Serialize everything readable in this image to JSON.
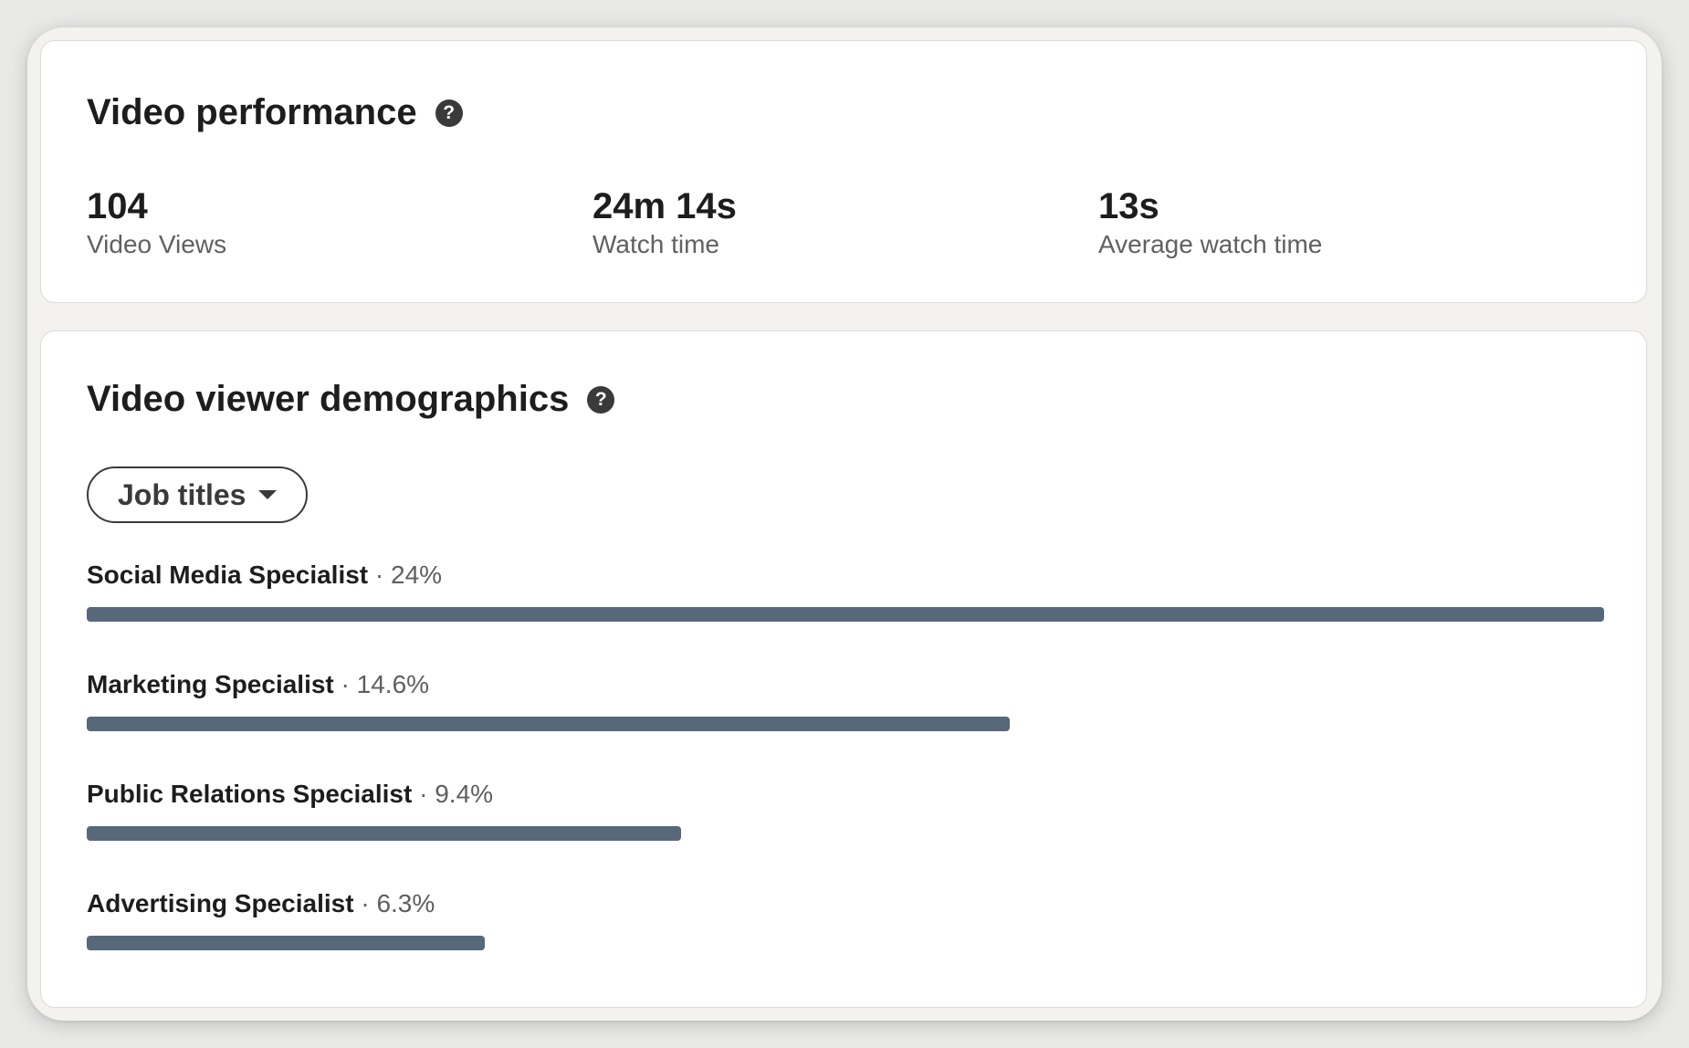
{
  "performance": {
    "title": "Video performance",
    "help_glyph": "?",
    "metrics": [
      {
        "value": "104",
        "label": "Video Views"
      },
      {
        "value": "24m 14s",
        "label": "Watch time"
      },
      {
        "value": "13s",
        "label": "Average watch time"
      }
    ]
  },
  "demographics": {
    "title": "Video viewer demographics",
    "help_glyph": "?",
    "dropdown": {
      "selected": "Job titles"
    },
    "separator": "·",
    "bar_color": "#56687a",
    "items": [
      {
        "name": "Social Media Specialist",
        "percent": "24%",
        "value": 24
      },
      {
        "name": "Marketing Specialist",
        "percent": "14.6%",
        "value": 14.6
      },
      {
        "name": "Public Relations Specialist",
        "percent": "9.4%",
        "value": 9.4
      },
      {
        "name": "Advertising Specialist",
        "percent": "6.3%",
        "value": 6.3
      }
    ]
  }
}
